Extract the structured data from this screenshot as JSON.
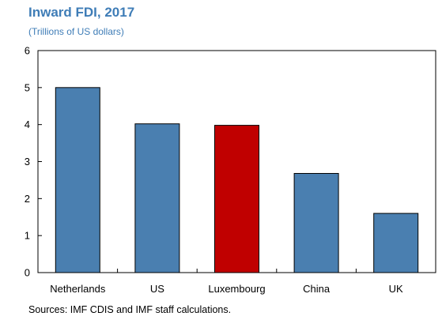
{
  "title": "Inward FDI, 2017",
  "subtitle": "(Trillions of US dollars)",
  "source": "Sources: IMF CDIS and IMF staff calculations.",
  "colors": {
    "bar": "#4a7fb0",
    "highlight": "#c00000",
    "title": "#3f7db7",
    "axis": "#000000"
  },
  "chart_data": {
    "type": "bar",
    "title": "Inward FDI, 2017",
    "subtitle": "(Trillions of US dollars)",
    "categories": [
      "Netherlands",
      "US",
      "Luxembourg",
      "China",
      "UK"
    ],
    "values": [
      5.0,
      4.02,
      3.98,
      2.68,
      1.6
    ],
    "highlight_index": 2,
    "ylim": [
      0,
      6
    ],
    "yticks": [
      0,
      1,
      2,
      3,
      4,
      5,
      6
    ],
    "grid": false,
    "legend": "none"
  }
}
